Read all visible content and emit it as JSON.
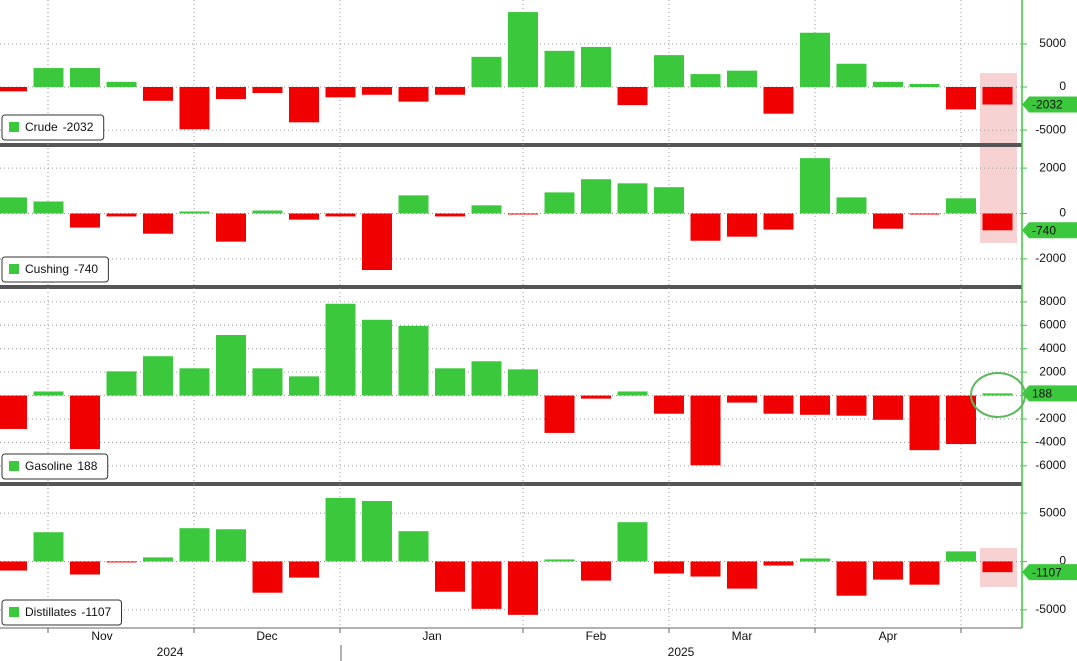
{
  "chart_data": [
    {
      "type": "bar",
      "series": [
        {
          "name": "Crude",
          "values": [
            -500,
            2200,
            2200,
            600,
            -1600,
            -4900,
            -1400,
            -700,
            -4100,
            -1200,
            -900,
            -1700,
            -900,
            3500,
            8700,
            4200,
            4650,
            -2100,
            3700,
            1500,
            1900,
            -3100,
            6300,
            2700,
            600,
            350,
            -2600,
            -2032
          ]
        }
      ],
      "ylim": [
        -6500,
        10100
      ],
      "yticks": [
        -5000,
        0,
        5000
      ],
      "color_positive": "#3cc83c",
      "color_negative": "#f00000",
      "grid": true
    },
    {
      "type": "bar",
      "series": [
        {
          "name": "Cushing",
          "values": [
            710,
            530,
            -620,
            -130,
            -890,
            90,
            -1240,
            130,
            -270,
            -130,
            -2490,
            800,
            -130,
            360,
            -40,
            930,
            1510,
            1330,
            1160,
            -1200,
            -1020,
            -710,
            2440,
            710,
            -670,
            -40,
            670,
            -740
          ]
        }
      ],
      "ylim": [
        -3150,
        2930
      ],
      "yticks": [
        -2000,
        0,
        2000
      ],
      "color_positive": "#3cc83c",
      "color_negative": "#f00000",
      "grid": true
    },
    {
      "type": "bar",
      "series": [
        {
          "name": "Gasoline",
          "values": [
            -2850,
            350,
            -4570,
            2070,
            3360,
            2330,
            5170,
            2330,
            1640,
            7840,
            6470,
            5950,
            2330,
            2930,
            2240,
            -3190,
            -260,
            350,
            -1550,
            -5950,
            -600,
            -1550,
            -1640,
            -1720,
            -2070,
            -4660,
            -4140,
            188
          ]
        }
      ],
      "ylim": [
        -7380,
        9100
      ],
      "yticks": [
        -6000,
        -4000,
        -2000,
        0,
        2000,
        4000,
        6000,
        8000
      ],
      "color_positive": "#3cc83c",
      "color_negative": "#f00000",
      "grid": true
    },
    {
      "type": "bar",
      "series": [
        {
          "name": "Distillates",
          "values": [
            -940,
            3020,
            -1350,
            -100,
            420,
            3440,
            3330,
            -3230,
            -1670,
            6560,
            6250,
            3130,
            -3130,
            -4900,
            -5520,
            210,
            -1980,
            4060,
            -1250,
            -1560,
            -2810,
            -420,
            310,
            -3540,
            -1880,
            -2400,
            1040,
            -1107
          ]
        }
      ],
      "ylim": [
        -6880,
        7800
      ],
      "yticks": [
        -5000,
        0,
        5000
      ],
      "color_positive": "#3cc83c",
      "color_negative": "#f00000",
      "grid": true
    }
  ],
  "x_axis": {
    "months": [
      "Nov",
      "Dec",
      "Jan",
      "Feb",
      "Mar",
      "Apr"
    ],
    "years": [
      "2024",
      "2025"
    ]
  }
}
